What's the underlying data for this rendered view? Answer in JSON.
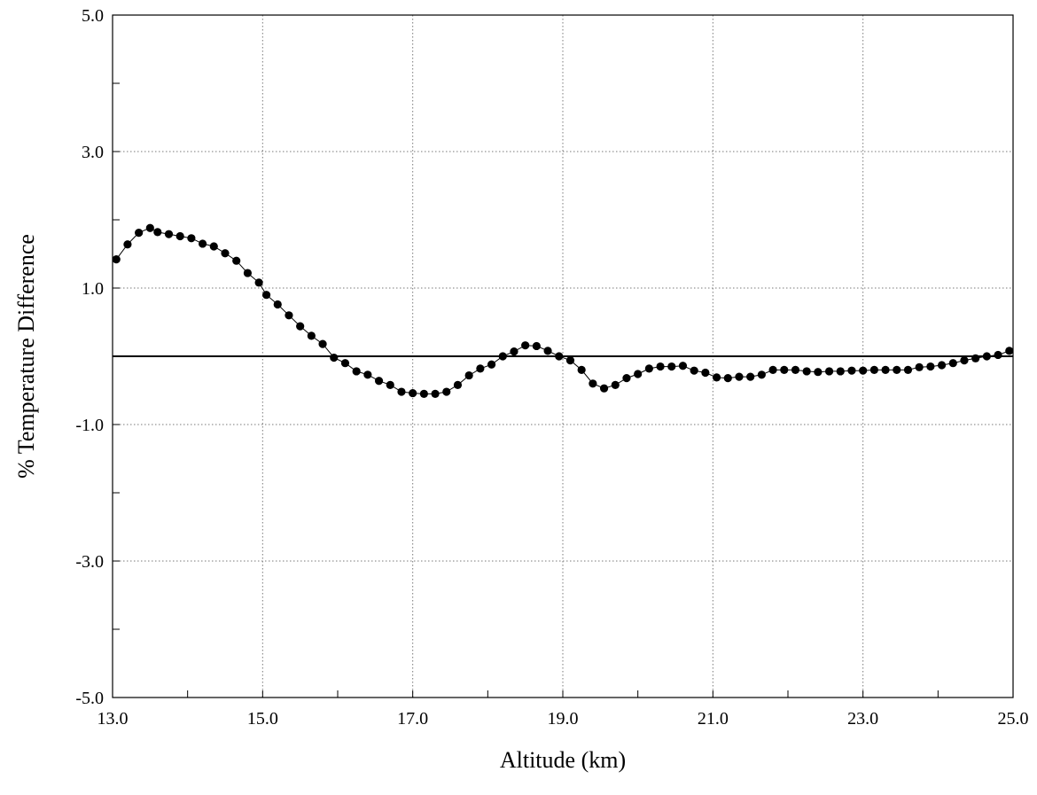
{
  "chart_data": {
    "type": "scatter",
    "title": "",
    "xlabel": "Altitude (km)",
    "ylabel": "% Temperature Difference",
    "xlim": [
      13.0,
      25.0
    ],
    "ylim": [
      -5.0,
      5.0
    ],
    "x_ticks": [
      "13.0",
      "15.0",
      "17.0",
      "19.0",
      "21.0",
      "23.0",
      "25.0"
    ],
    "y_ticks": [
      "-5.0",
      "-3.0",
      "-1.0",
      "1.0",
      "3.0",
      "5.0"
    ],
    "grid": true,
    "reference_line_y": 0,
    "series": [
      {
        "x": [
          13.05,
          13.2,
          13.35,
          13.5,
          13.6,
          13.75,
          13.9,
          14.05,
          14.2,
          14.35,
          14.5,
          14.65,
          14.8,
          14.95,
          15.05,
          15.2,
          15.35,
          15.5,
          15.65,
          15.8,
          15.95,
          16.1,
          16.25,
          16.4,
          16.55,
          16.7,
          16.85,
          17.0,
          17.15,
          17.3,
          17.45,
          17.6,
          17.75,
          17.9,
          18.05,
          18.2,
          18.35,
          18.5,
          18.65,
          18.8,
          18.95,
          19.1,
          19.25,
          19.4,
          19.55,
          19.7,
          19.85,
          20.0,
          20.15,
          20.3,
          20.45,
          20.6,
          20.75,
          20.9,
          21.05,
          21.2,
          21.35,
          21.5,
          21.65,
          21.8,
          21.95,
          22.1,
          22.25,
          22.4,
          22.55,
          22.7,
          22.85,
          23.0,
          23.15,
          23.3,
          23.45,
          23.6,
          23.75,
          23.9,
          24.05,
          24.2,
          24.35,
          24.5,
          24.65,
          24.8,
          24.95
        ],
        "y": [
          1.42,
          1.64,
          1.81,
          1.88,
          1.82,
          1.79,
          1.76,
          1.73,
          1.65,
          1.61,
          1.51,
          1.4,
          1.22,
          1.08,
          0.9,
          0.76,
          0.6,
          0.44,
          0.3,
          0.18,
          -0.02,
          -0.1,
          -0.22,
          -0.27,
          -0.36,
          -0.42,
          -0.52,
          -0.54,
          -0.55,
          -0.55,
          -0.52,
          -0.42,
          -0.28,
          -0.18,
          -0.12,
          0.0,
          0.07,
          0.16,
          0.15,
          0.08,
          0.0,
          -0.06,
          -0.2,
          -0.4,
          -0.47,
          -0.42,
          -0.32,
          -0.26,
          -0.18,
          -0.15,
          -0.15,
          -0.14,
          -0.21,
          -0.24,
          -0.31,
          -0.32,
          -0.3,
          -0.3,
          -0.27,
          -0.2,
          -0.2,
          -0.2,
          -0.22,
          -0.23,
          -0.22,
          -0.22,
          -0.21,
          -0.21,
          -0.2,
          -0.2,
          -0.2,
          -0.2,
          -0.16,
          -0.15,
          -0.13,
          -0.1,
          -0.06,
          -0.03,
          0.0,
          0.02,
          0.08
        ]
      }
    ]
  }
}
